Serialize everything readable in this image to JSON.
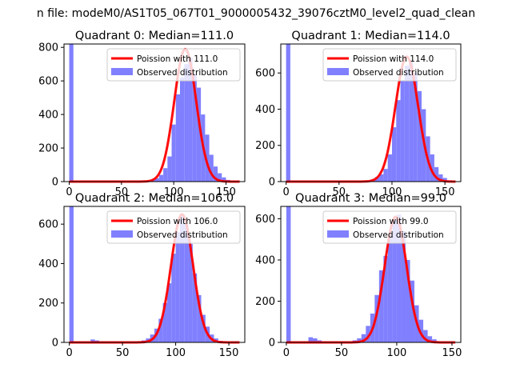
{
  "figure": {
    "suptitle": "n file: modeM0/AS1T05_067T01_9000005432_39076cztM0_level2_quad_clean"
  },
  "colors": {
    "poisson": "#ff0000",
    "observed": "#8080ff"
  },
  "chart_data": [
    {
      "type": "bar",
      "title": "Quadrant 0: Median=111.0",
      "xlim": [
        -5,
        168
      ],
      "ylim": [
        0,
        820
      ],
      "xticks": [
        0,
        50,
        100,
        150
      ],
      "yticks": [
        0,
        200,
        400,
        600,
        800
      ],
      "legend": [
        "Poission with 111.0",
        "Observed distribution"
      ],
      "legend_position": "top-right",
      "median": 111.0,
      "peak": 790,
      "bins_x": [
        0,
        74,
        78,
        82,
        86,
        90,
        94,
        98,
        102,
        106,
        110,
        114,
        118,
        122,
        126,
        130,
        134,
        138,
        142,
        146,
        150,
        154
      ],
      "bins_width": 4,
      "bins_y": [
        820,
        5,
        10,
        20,
        40,
        80,
        150,
        340,
        520,
        620,
        700,
        740,
        640,
        560,
        400,
        280,
        160,
        90,
        50,
        25,
        10,
        5
      ]
    },
    {
      "type": "bar",
      "title": "Quadrant 1: Median=114.0",
      "xlim": [
        -5,
        165
      ],
      "ylim": [
        0,
        760
      ],
      "xticks": [
        0,
        50,
        100,
        150
      ],
      "yticks": [
        0,
        200,
        400,
        600
      ],
      "legend": [
        "Poission with 114.0",
        "Observed distribution"
      ],
      "legend_position": "top-right",
      "median": 114.0,
      "peak": 690,
      "bins_x": [
        0,
        80,
        84,
        88,
        92,
        96,
        100,
        104,
        108,
        112,
        116,
        120,
        124,
        128,
        132,
        136,
        140,
        144,
        148,
        152
      ],
      "bins_width": 4,
      "bins_y": [
        760,
        10,
        25,
        40,
        70,
        150,
        300,
        450,
        560,
        640,
        670,
        600,
        500,
        400,
        250,
        150,
        80,
        40,
        20,
        5
      ]
    },
    {
      "type": "bar",
      "title": "Quadrant 2: Median=106.0",
      "xlim": [
        -5,
        165
      ],
      "ylim": [
        0,
        690
      ],
      "xticks": [
        0,
        50,
        100,
        150
      ],
      "yticks": [
        0,
        200,
        400,
        600
      ],
      "legend": [
        "Poission with 106.0",
        "Observed distribution"
      ],
      "legend_position": "top-right",
      "median": 106.0,
      "peak": 650,
      "bins_x": [
        0,
        20,
        24,
        68,
        72,
        76,
        80,
        84,
        88,
        92,
        96,
        100,
        104,
        108,
        112,
        116,
        120,
        124,
        128,
        132,
        136,
        140
      ],
      "bins_width": 4,
      "bins_y": [
        690,
        15,
        10,
        10,
        20,
        40,
        70,
        120,
        200,
        300,
        450,
        560,
        640,
        600,
        500,
        350,
        240,
        140,
        80,
        40,
        20,
        8
      ]
    },
    {
      "type": "bar",
      "title": "Quadrant 3: Median=99.0",
      "xlim": [
        -5,
        158
      ],
      "ylim": [
        0,
        660
      ],
      "xticks": [
        0,
        50,
        100,
        150
      ],
      "yticks": [
        0,
        200,
        400,
        600
      ],
      "legend": [
        "Poission with 99.0",
        "Observed distribution"
      ],
      "legend_position": "top-right",
      "median": 99.0,
      "peak": 610,
      "bins_x": [
        0,
        20,
        24,
        28,
        60,
        64,
        68,
        72,
        76,
        80,
        84,
        88,
        92,
        96,
        100,
        104,
        108,
        112,
        116,
        120,
        124,
        128,
        132,
        136
      ],
      "bins_width": 4,
      "bins_y": [
        660,
        25,
        20,
        10,
        10,
        20,
        40,
        80,
        140,
        230,
        350,
        420,
        520,
        600,
        620,
        540,
        400,
        300,
        180,
        110,
        60,
        30,
        15,
        5
      ]
    }
  ]
}
